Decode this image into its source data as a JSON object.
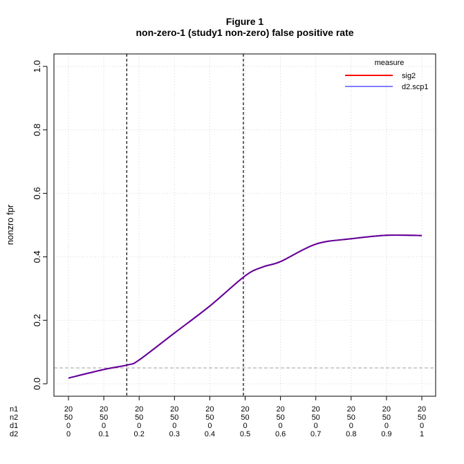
{
  "chart_data": {
    "type": "line",
    "title": "Figure 1",
    "subtitle": "non-zero-1 (study1 non-zero) false positive rate",
    "ylabel": "nonzro fpr",
    "xlabel": "",
    "ylim": [
      0,
      1
    ],
    "xlim": [
      0,
      1
    ],
    "y_ticks": [
      "0.0",
      "0.2",
      "0.4",
      "0.6",
      "0.8",
      "1.0"
    ],
    "y_tick_values": [
      0,
      0.2,
      0.4,
      0.6,
      0.8,
      1.0
    ],
    "grid": true,
    "x_table": {
      "row_labels": [
        "n1",
        "n2",
        "d1",
        "d2"
      ],
      "x_positions": [
        0,
        0.1,
        0.2,
        0.3,
        0.4,
        0.5,
        0.6,
        0.7,
        0.8,
        0.9,
        1
      ],
      "rows": [
        [
          "20",
          "20",
          "20",
          "20",
          "20",
          "20",
          "20",
          "20",
          "20",
          "20",
          "20"
        ],
        [
          "50",
          "50",
          "50",
          "50",
          "50",
          "50",
          "50",
          "50",
          "50",
          "50",
          "50"
        ],
        [
          "0",
          "0",
          "0",
          "0",
          "0",
          "0",
          "0",
          "0",
          "0",
          "0",
          "0"
        ],
        [
          "0",
          "0.1",
          "0.2",
          "0.3",
          "0.4",
          "0.5",
          "0.6",
          "0.7",
          "0.8",
          "0.9",
          "1"
        ]
      ]
    },
    "x": [
      0,
      0.1,
      0.17,
      0.2,
      0.3,
      0.4,
      0.5,
      0.55,
      0.6,
      0.7,
      0.8,
      0.9,
      1
    ],
    "series": [
      {
        "name": "sig2",
        "color": "#ff0000",
        "values": [
          0.018,
          0.045,
          0.06,
          0.075,
          0.16,
          0.245,
          0.34,
          0.368,
          0.385,
          0.44,
          0.457,
          0.468,
          0.467
        ]
      },
      {
        "name": "d2.scp1",
        "color": "#0000ff",
        "values": [
          0.018,
          0.045,
          0.06,
          0.075,
          0.16,
          0.245,
          0.34,
          0.368,
          0.385,
          0.44,
          0.457,
          0.468,
          0.467
        ]
      }
    ],
    "overlap_color": "#660099",
    "vlines": [
      0.165,
      0.495
    ],
    "hline": 0.05,
    "legend": {
      "title": "measure",
      "position": "top-right",
      "entries": [
        "sig2",
        "d2.scp1"
      ]
    }
  }
}
